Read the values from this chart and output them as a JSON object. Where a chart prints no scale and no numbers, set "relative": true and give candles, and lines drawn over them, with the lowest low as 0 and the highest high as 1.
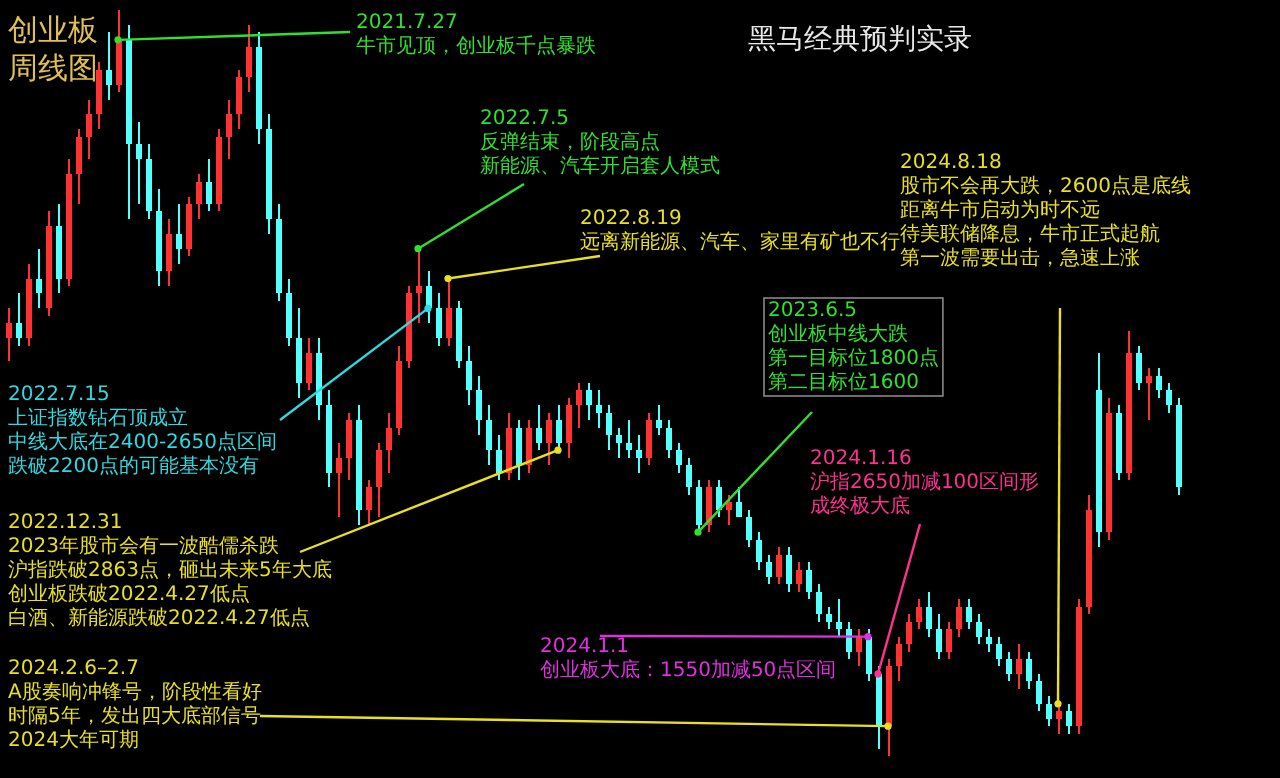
{
  "chart_data": {
    "type": "candlestick",
    "relative": true,
    "title": "创业板周线图",
    "subtitle": "黑马经典预判实录",
    "categories": [
      null,
      null,
      null,
      null,
      null,
      null,
      null,
      null,
      null,
      null,
      null,
      null,
      null,
      null,
      null,
      null,
      null,
      null,
      null,
      null,
      null,
      null,
      null,
      null,
      null,
      null,
      null,
      null,
      null,
      null,
      null,
      null,
      null,
      null,
      null,
      null,
      null,
      null,
      null,
      null,
      null,
      null,
      null,
      null,
      null,
      null,
      null,
      null,
      null,
      null,
      null,
      null,
      null,
      null,
      null,
      null,
      null,
      null,
      null,
      null,
      null,
      null,
      null,
      null,
      null,
      null,
      null,
      null,
      null,
      null,
      null,
      null,
      null,
      null,
      null,
      null,
      null,
      null,
      null,
      null,
      null,
      null,
      null,
      null,
      null,
      null,
      null,
      null,
      null,
      null,
      null,
      null,
      null,
      null,
      null,
      null,
      null,
      null,
      null,
      null,
      null,
      null,
      null,
      null,
      null,
      null,
      null,
      null,
      null,
      null,
      null,
      null,
      null,
      null,
      null,
      null,
      null,
      null
    ],
    "ohlc": [
      [
        0.56,
        0.6,
        0.53,
        0.58
      ],
      [
        0.58,
        0.62,
        0.55,
        0.56
      ],
      [
        0.56,
        0.66,
        0.55,
        0.64
      ],
      [
        0.64,
        0.68,
        0.6,
        0.62
      ],
      [
        0.6,
        0.73,
        0.59,
        0.71
      ],
      [
        0.71,
        0.74,
        0.62,
        0.64
      ],
      [
        0.64,
        0.8,
        0.63,
        0.78
      ],
      [
        0.78,
        0.84,
        0.74,
        0.83
      ],
      [
        0.83,
        0.88,
        0.8,
        0.86
      ],
      [
        0.86,
        0.93,
        0.84,
        0.92
      ],
      [
        0.92,
        0.97,
        0.88,
        0.9
      ],
      [
        0.9,
        1.0,
        0.89,
        0.96
      ],
      [
        0.96,
        0.98,
        0.72,
        0.82
      ],
      [
        0.82,
        0.85,
        0.74,
        0.8
      ],
      [
        0.8,
        0.82,
        0.72,
        0.73
      ],
      [
        0.73,
        0.76,
        0.63,
        0.65
      ],
      [
        0.65,
        0.72,
        0.63,
        0.7
      ],
      [
        0.7,
        0.74,
        0.66,
        0.68
      ],
      [
        0.68,
        0.75,
        0.67,
        0.74
      ],
      [
        0.74,
        0.78,
        0.72,
        0.77
      ],
      [
        0.77,
        0.8,
        0.73,
        0.74
      ],
      [
        0.74,
        0.84,
        0.73,
        0.83
      ],
      [
        0.83,
        0.88,
        0.8,
        0.86
      ],
      [
        0.86,
        0.92,
        0.84,
        0.91
      ],
      [
        0.91,
        0.98,
        0.89,
        0.95
      ],
      [
        0.95,
        0.97,
        0.82,
        0.84
      ],
      [
        0.84,
        0.86,
        0.7,
        0.72
      ],
      [
        0.72,
        0.74,
        0.61,
        0.62
      ],
      [
        0.62,
        0.64,
        0.55,
        0.56
      ],
      [
        0.56,
        0.6,
        0.48,
        0.5
      ],
      [
        0.5,
        0.56,
        0.49,
        0.54
      ],
      [
        0.54,
        0.56,
        0.45,
        0.47
      ],
      [
        0.47,
        0.49,
        0.36,
        0.38
      ],
      [
        0.38,
        0.42,
        0.32,
        0.4
      ],
      [
        0.4,
        0.46,
        0.37,
        0.45
      ],
      [
        0.45,
        0.47,
        0.31,
        0.33
      ],
      [
        0.33,
        0.37,
        0.31,
        0.36
      ],
      [
        0.36,
        0.42,
        0.32,
        0.41
      ],
      [
        0.41,
        0.46,
        0.38,
        0.44
      ],
      [
        0.44,
        0.55,
        0.43,
        0.53
      ],
      [
        0.53,
        0.63,
        0.52,
        0.62
      ],
      [
        0.62,
        0.68,
        0.58,
        0.63
      ],
      [
        0.63,
        0.65,
        0.58,
        0.6
      ],
      [
        0.6,
        0.62,
        0.55,
        0.56
      ],
      [
        0.56,
        0.64,
        0.55,
        0.6
      ],
      [
        0.6,
        0.61,
        0.52,
        0.53
      ],
      [
        0.53,
        0.55,
        0.47,
        0.49
      ],
      [
        0.49,
        0.51,
        0.43,
        0.45
      ],
      [
        0.45,
        0.47,
        0.39,
        0.41
      ],
      [
        0.41,
        0.43,
        0.37,
        0.38
      ],
      [
        0.38,
        0.46,
        0.37,
        0.44
      ],
      [
        0.44,
        0.45,
        0.37,
        0.39
      ],
      [
        0.39,
        0.45,
        0.38,
        0.44
      ],
      [
        0.44,
        0.47,
        0.41,
        0.42
      ],
      [
        0.42,
        0.46,
        0.39,
        0.45
      ],
      [
        0.45,
        0.47,
        0.41,
        0.42
      ],
      [
        0.42,
        0.48,
        0.4,
        0.47
      ],
      [
        0.47,
        0.5,
        0.44,
        0.49
      ],
      [
        0.49,
        0.5,
        0.45,
        0.47
      ],
      [
        0.47,
        0.49,
        0.44,
        0.46
      ],
      [
        0.46,
        0.47,
        0.41,
        0.43
      ],
      [
        0.43,
        0.44,
        0.4,
        0.42
      ],
      [
        0.42,
        0.45,
        0.4,
        0.41
      ],
      [
        0.41,
        0.43,
        0.38,
        0.4
      ],
      [
        0.4,
        0.46,
        0.39,
        0.45
      ],
      [
        0.45,
        0.47,
        0.43,
        0.44
      ],
      [
        0.44,
        0.45,
        0.4,
        0.41
      ],
      [
        0.41,
        0.42,
        0.38,
        0.39
      ],
      [
        0.39,
        0.4,
        0.35,
        0.36
      ],
      [
        0.36,
        0.37,
        0.3,
        0.31
      ],
      [
        0.31,
        0.37,
        0.3,
        0.36
      ],
      [
        0.36,
        0.37,
        0.32,
        0.33
      ],
      [
        0.33,
        0.35,
        0.31,
        0.34
      ],
      [
        0.34,
        0.36,
        0.32,
        0.32
      ],
      [
        0.32,
        0.33,
        0.28,
        0.29
      ],
      [
        0.29,
        0.3,
        0.25,
        0.26
      ],
      [
        0.26,
        0.27,
        0.23,
        0.24
      ],
      [
        0.24,
        0.28,
        0.23,
        0.27
      ],
      [
        0.27,
        0.28,
        0.22,
        0.23
      ],
      [
        0.23,
        0.26,
        0.22,
        0.25
      ],
      [
        0.25,
        0.26,
        0.21,
        0.22
      ],
      [
        0.22,
        0.23,
        0.18,
        0.19
      ],
      [
        0.19,
        0.2,
        0.17,
        0.18
      ],
      [
        0.18,
        0.21,
        0.16,
        0.17
      ],
      [
        0.17,
        0.18,
        0.13,
        0.14
      ],
      [
        0.14,
        0.17,
        0.12,
        0.16
      ],
      [
        0.16,
        0.17,
        0.1,
        0.11
      ],
      [
        0.11,
        0.12,
        0.01,
        0.04
      ],
      [
        0.04,
        0.13,
        0.0,
        0.12
      ],
      [
        0.12,
        0.16,
        0.1,
        0.15
      ],
      [
        0.15,
        0.19,
        0.14,
        0.18
      ],
      [
        0.18,
        0.21,
        0.17,
        0.2
      ],
      [
        0.2,
        0.22,
        0.16,
        0.17
      ],
      [
        0.17,
        0.19,
        0.13,
        0.14
      ],
      [
        0.14,
        0.18,
        0.13,
        0.17
      ],
      [
        0.17,
        0.21,
        0.16,
        0.2
      ],
      [
        0.2,
        0.21,
        0.17,
        0.18
      ],
      [
        0.18,
        0.19,
        0.15,
        0.16
      ],
      [
        0.16,
        0.17,
        0.14,
        0.15
      ],
      [
        0.15,
        0.16,
        0.12,
        0.13
      ],
      [
        0.13,
        0.14,
        0.1,
        0.11
      ],
      [
        0.11,
        0.15,
        0.09,
        0.13
      ],
      [
        0.13,
        0.14,
        0.09,
        0.1
      ],
      [
        0.1,
        0.11,
        0.06,
        0.07
      ],
      [
        0.07,
        0.08,
        0.04,
        0.05
      ],
      [
        0.05,
        0.07,
        0.03,
        0.06
      ],
      [
        0.06,
        0.07,
        0.03,
        0.04
      ],
      [
        0.04,
        0.21,
        0.03,
        0.2
      ],
      [
        0.2,
        0.35,
        0.19,
        0.33
      ],
      [
        0.49,
        0.54,
        0.28,
        0.3
      ],
      [
        0.3,
        0.48,
        0.29,
        0.46
      ],
      [
        0.46,
        0.47,
        0.37,
        0.38
      ],
      [
        0.38,
        0.57,
        0.37,
        0.54
      ],
      [
        0.54,
        0.55,
        0.49,
        0.5
      ],
      [
        0.5,
        0.52,
        0.45,
        0.51
      ],
      [
        0.51,
        0.52,
        0.48,
        0.49
      ],
      [
        0.49,
        0.5,
        0.46,
        0.47
      ],
      [
        0.47,
        0.48,
        0.35,
        0.36
      ]
    ],
    "annotations": [
      "2021.7.27",
      "牛市见顶，创业板千点暴跌",
      "2022.7.5",
      "反弹结束，阶段高点",
      "新能源、汽车开启套人模式",
      "2022.8.19",
      "远离新能源、汽车、家里有矿也不行",
      "2022.7.15",
      "上证指数钻石顶成立",
      "中线大底在2400-2650点区间",
      "跌破2200点的可能基本没有",
      "2023.6.5",
      "创业板中线大跌",
      "第一目标位1800点",
      "第二目标位1600",
      "2022.12.31",
      "2023年股市会有一波酷儒杀跌",
      "沪指跌破2863点，砸出未来5年大底",
      "创业板跌破2022.4.27低点",
      "白酒、新能源跌破2022.4.27低点",
      "2024.1.1",
      "创业板大底：1550加减50点区间",
      "2024.1.16",
      "沪指2650加减100区间形成终极大底",
      "2024.2.6–2.7",
      "A股奏响冲锋号，阶段性看好",
      "时隔5年，发出四大底部信号",
      "2024大年可期",
      "2024.8.18",
      "股市不会再大跌，2600点是底线",
      "距离牛市启动为时不远",
      "待美联储降息，牛市正式起航",
      "第一波需要出击，急速上涨"
    ]
  }
}
